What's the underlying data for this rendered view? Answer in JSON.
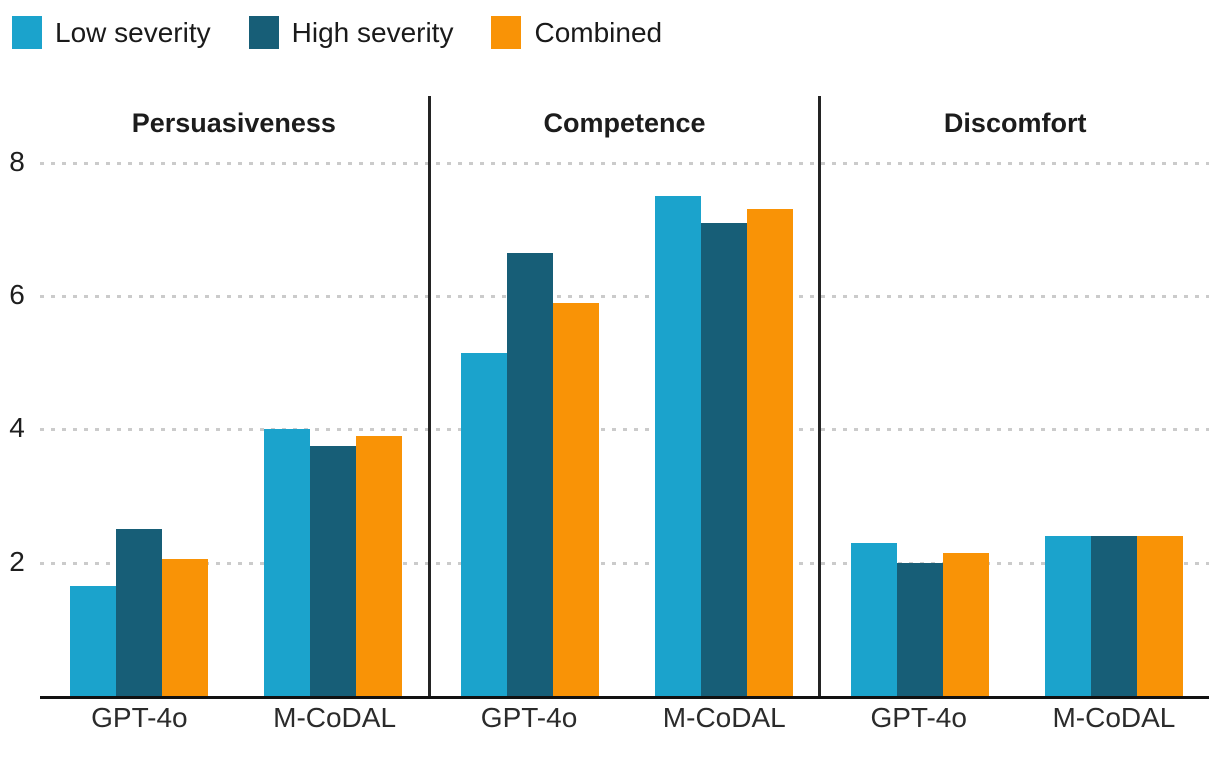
{
  "chart_data": {
    "type": "bar",
    "title": "",
    "xlabel": "",
    "ylabel": "",
    "ylim": [
      0,
      9
    ],
    "yticks": [
      2,
      4,
      6,
      8
    ],
    "grid": "dotted horizontal lines at yticks",
    "legend_position": "top-left",
    "series_names": [
      "Low severity",
      "High severity",
      "Combined"
    ],
    "series_colors": [
      "#1ba3cc",
      "#175e77",
      "#f99306"
    ],
    "axis_color": "#111111",
    "divider_color": "#242424",
    "panels": [
      {
        "title": "Persuasiveness",
        "categories": [
          "GPT-4o",
          "M-CoDAL"
        ],
        "series": [
          {
            "name": "Low severity",
            "values": [
              1.65,
              4.0
            ]
          },
          {
            "name": "High severity",
            "values": [
              2.5,
              3.75
            ]
          },
          {
            "name": "Combined",
            "values": [
              2.05,
              3.9
            ]
          }
        ]
      },
      {
        "title": "Competence",
        "categories": [
          "GPT-4o",
          "M-CoDAL"
        ],
        "series": [
          {
            "name": "Low severity",
            "values": [
              5.15,
              7.5
            ]
          },
          {
            "name": "High severity",
            "values": [
              6.65,
              7.1
            ]
          },
          {
            "name": "Combined",
            "values": [
              5.9,
              7.3
            ]
          }
        ]
      },
      {
        "title": "Discomfort",
        "categories": [
          "GPT-4o",
          "M-CoDAL"
        ],
        "series": [
          {
            "name": "Low severity",
            "values": [
              2.3,
              2.4
            ]
          },
          {
            "name": "High severity",
            "values": [
              2.0,
              2.4
            ]
          },
          {
            "name": "Combined",
            "values": [
              2.15,
              2.4
            ]
          }
        ]
      }
    ]
  }
}
